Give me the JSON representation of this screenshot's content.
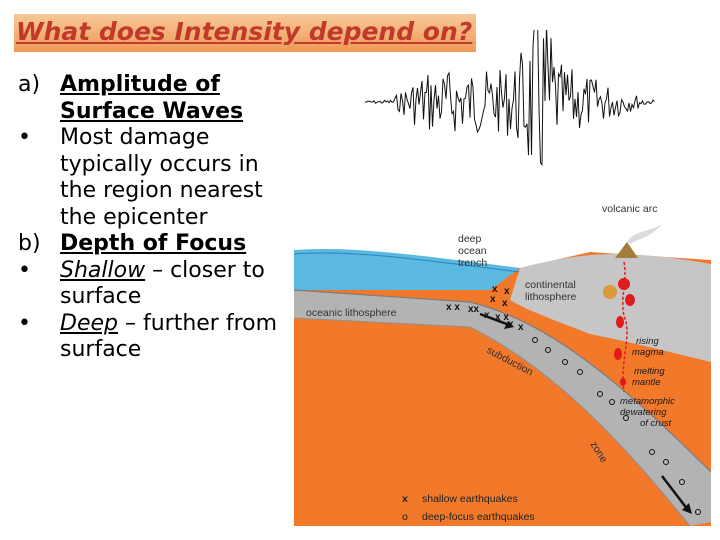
{
  "slide": {
    "title": "What does Intensity depend on?",
    "items": [
      {
        "marker": "a)",
        "text": "Amplitude of Surface Waves"
      },
      {
        "marker": "•",
        "text": "Most damage typically occurs in the region nearest the epicenter"
      },
      {
        "marker": "b)",
        "text": "Depth of Focus"
      },
      {
        "marker": "•",
        "emphasis": "Shallow",
        "text": " – closer to surface"
      },
      {
        "marker": "•",
        "emphasis": "Deep",
        "text": " – further from surface"
      }
    ]
  },
  "diagram": {
    "labels": {
      "volcanic_arc": "volcanic arc",
      "trench_1": "deep",
      "trench_2": "ocean",
      "trench_3": "trench",
      "continental_1": "continental",
      "continental_2": "lithosphere",
      "oceanic": "oceanic lithosphere",
      "subduction": "subduction",
      "zone": "zone",
      "rising_1": "rising",
      "rising_2": "magma",
      "melting_1": "melting",
      "melting_2": "mantle",
      "meta_1": "metamorphic",
      "meta_2": "dewatering",
      "meta_3": "of crust"
    },
    "legend": [
      {
        "symbol": "x",
        "label": "shallow earthquakes"
      },
      {
        "symbol": "o",
        "label": "deep-focus earthquakes"
      }
    ],
    "colors": {
      "ocean": "#5bb8e0",
      "mantle": "#f2782a",
      "plate": "#b8b8b8",
      "magma": "#e01b1b"
    }
  }
}
